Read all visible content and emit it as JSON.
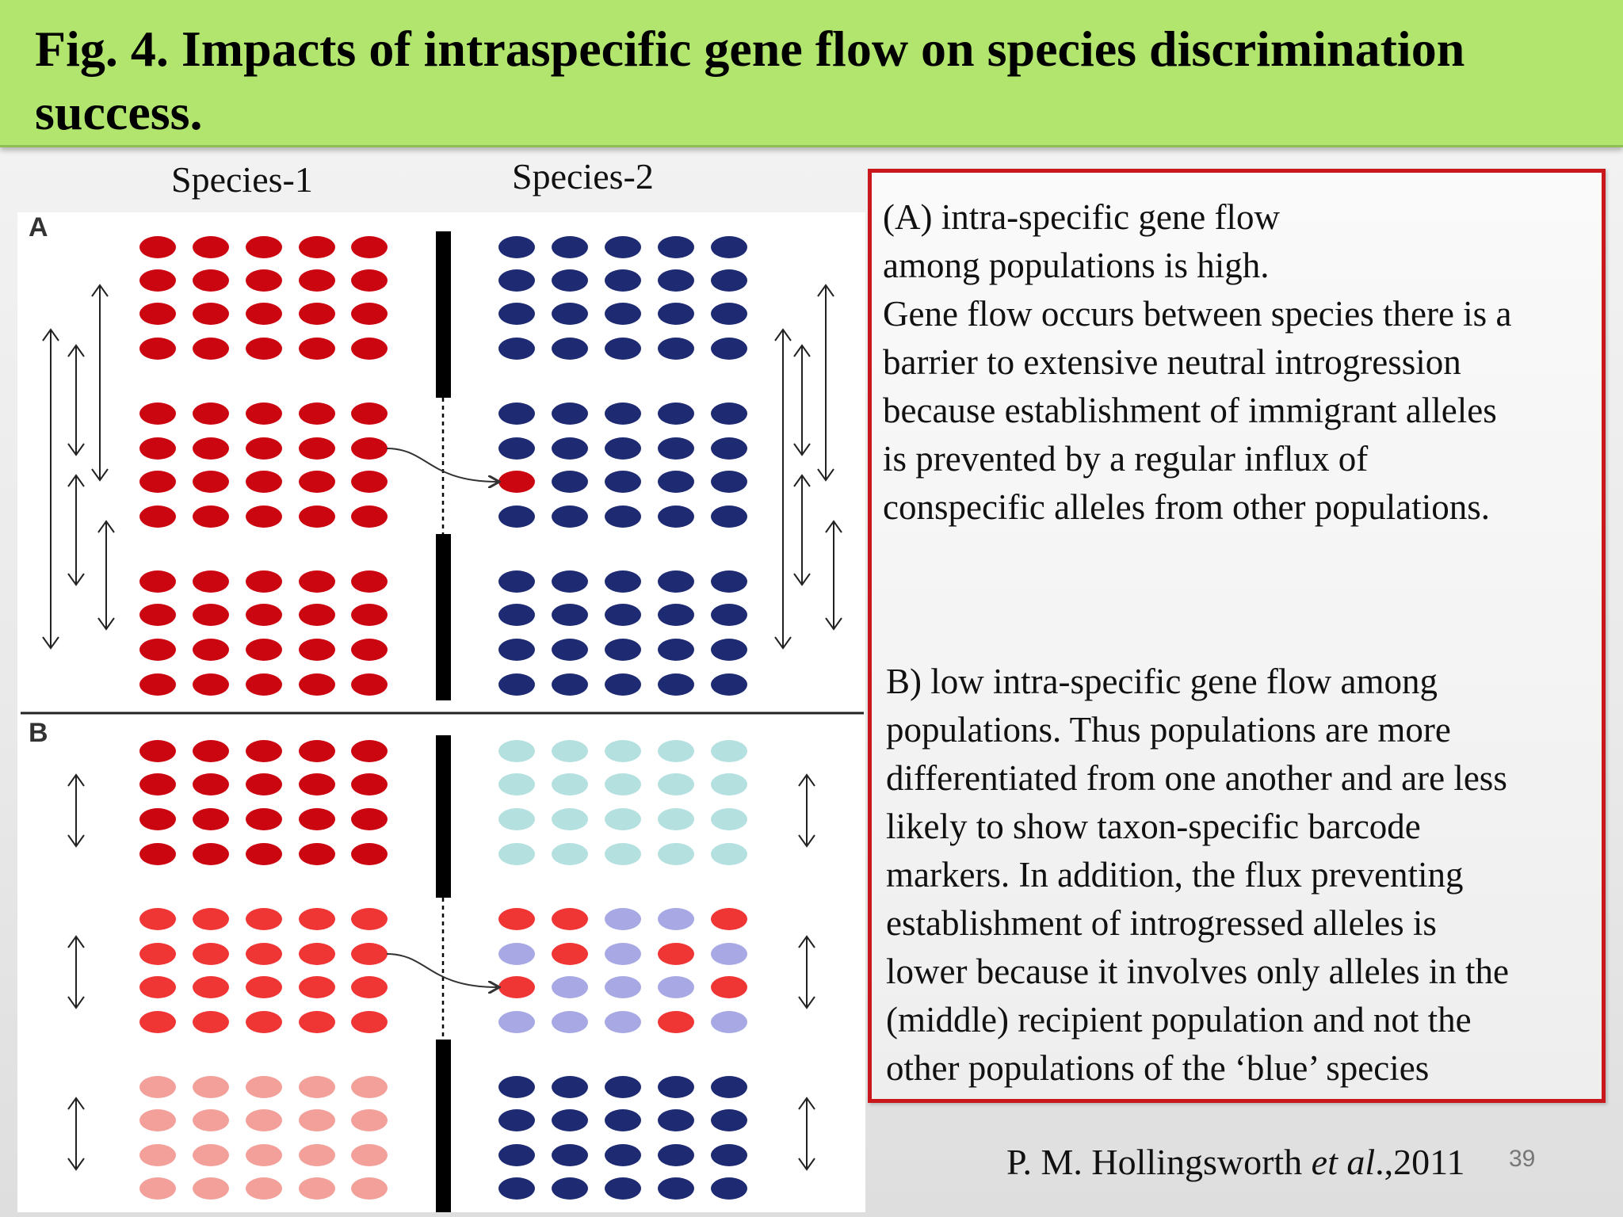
{
  "title": "Fig. 4. Impacts of intraspecific gene flow on species discrimination success.",
  "species_labels": [
    "Species-1",
    "Species-2"
  ],
  "panels": [
    {
      "letter": "A",
      "species1_rows": [
        [
          "r",
          "r",
          "r",
          "r",
          "r"
        ],
        [
          "r",
          "r",
          "r",
          "r",
          "r"
        ],
        [
          "r",
          "r",
          "r",
          "r",
          "r"
        ],
        [
          "r",
          "r",
          "r",
          "r",
          "r"
        ],
        [
          "r",
          "r",
          "r",
          "r",
          "r"
        ],
        [
          "r",
          "r",
          "r",
          "r",
          "r"
        ],
        [
          "r",
          "r",
          "r",
          "r",
          "r"
        ],
        [
          "r",
          "r",
          "r",
          "r",
          "r"
        ],
        [
          "r",
          "r",
          "r",
          "r",
          "r"
        ],
        [
          "r",
          "r",
          "r",
          "r",
          "r"
        ],
        [
          "r",
          "r",
          "r",
          "r",
          "r"
        ],
        [
          "r",
          "r",
          "r",
          "r",
          "r"
        ]
      ],
      "species2_rows": [
        [
          "n",
          "n",
          "n",
          "n",
          "n"
        ],
        [
          "n",
          "n",
          "n",
          "n",
          "n"
        ],
        [
          "n",
          "n",
          "n",
          "n",
          "n"
        ],
        [
          "n",
          "n",
          "n",
          "n",
          "n"
        ],
        [
          "n",
          "n",
          "n",
          "n",
          "n"
        ],
        [
          "n",
          "n",
          "n",
          "n",
          "n"
        ],
        [
          "r",
          "n",
          "n",
          "n",
          "n"
        ],
        [
          "n",
          "n",
          "n",
          "n",
          "n"
        ],
        [
          "n",
          "n",
          "n",
          "n",
          "n"
        ],
        [
          "n",
          "n",
          "n",
          "n",
          "n"
        ],
        [
          "n",
          "n",
          "n",
          "n",
          "n"
        ],
        [
          "n",
          "n",
          "n",
          "n",
          "n"
        ]
      ]
    },
    {
      "letter": "B",
      "species1_rows": [
        [
          "r",
          "r",
          "r",
          "r",
          "r"
        ],
        [
          "r",
          "r",
          "r",
          "r",
          "r"
        ],
        [
          "r",
          "r",
          "r",
          "r",
          "r"
        ],
        [
          "r",
          "r",
          "r",
          "r",
          "r"
        ],
        [
          "b",
          "b",
          "b",
          "b",
          "b"
        ],
        [
          "b",
          "b",
          "b",
          "b",
          "b"
        ],
        [
          "b",
          "b",
          "b",
          "b",
          "b"
        ],
        [
          "b",
          "b",
          "b",
          "b",
          "b"
        ],
        [
          "p",
          "p",
          "p",
          "p",
          "p"
        ],
        [
          "p",
          "p",
          "p",
          "p",
          "p"
        ],
        [
          "p",
          "p",
          "p",
          "p",
          "p"
        ],
        [
          "p",
          "p",
          "p",
          "p",
          "p"
        ]
      ],
      "species2_rows": [
        [
          "c",
          "c",
          "c",
          "c",
          "c"
        ],
        [
          "c",
          "c",
          "c",
          "c",
          "c"
        ],
        [
          "c",
          "c",
          "c",
          "c",
          "c"
        ],
        [
          "c",
          "c",
          "c",
          "c",
          "c"
        ],
        [
          "b",
          "b",
          "l",
          "l",
          "b"
        ],
        [
          "l",
          "b",
          "l",
          "b",
          "l"
        ],
        [
          "b",
          "l",
          "l",
          "l",
          "b"
        ],
        [
          "l",
          "l",
          "l",
          "b",
          "l"
        ],
        [
          "n",
          "n",
          "n",
          "n",
          "n"
        ],
        [
          "n",
          "n",
          "n",
          "n",
          "n"
        ],
        [
          "n",
          "n",
          "n",
          "n",
          "n"
        ],
        [
          "n",
          "n",
          "n",
          "n",
          "n"
        ]
      ]
    }
  ],
  "colors": {
    "r": "#cc0610",
    "n": "#1e2a72",
    "b": "#f03535",
    "p": "#f4a09a",
    "c": "#b5e0e0",
    "l": "#a7a8e4",
    "frame": "#c8181c",
    "title_bg": "#b1e56d"
  },
  "text_box": {
    "para_a": [
      "(A) intra-specific gene flow",
      "among populations is high.",
      "Gene flow occurs between species there is a",
      "barrier to extensive neutral introgression",
      "because establishment of immigrant alleles",
      "is prevented by a regular influx of",
      "conspecific alleles from other populations."
    ],
    "para_b": [
      "B) low intra-specific gene flow among",
      "populations. Thus populations are more",
      "differentiated from one another and are less",
      "likely to show taxon-specific barcode",
      "markers. In addition, the flux preventing",
      "establishment of introgressed alleles is",
      "lower because it involves only alleles in the",
      "(middle) recipient population and not the",
      "other populations of the ‘blue’ species"
    ]
  },
  "citation": {
    "author": "P. M. Hollingsworth ",
    "etal": "et al",
    "year": ".,2011"
  },
  "slide_number": "39"
}
